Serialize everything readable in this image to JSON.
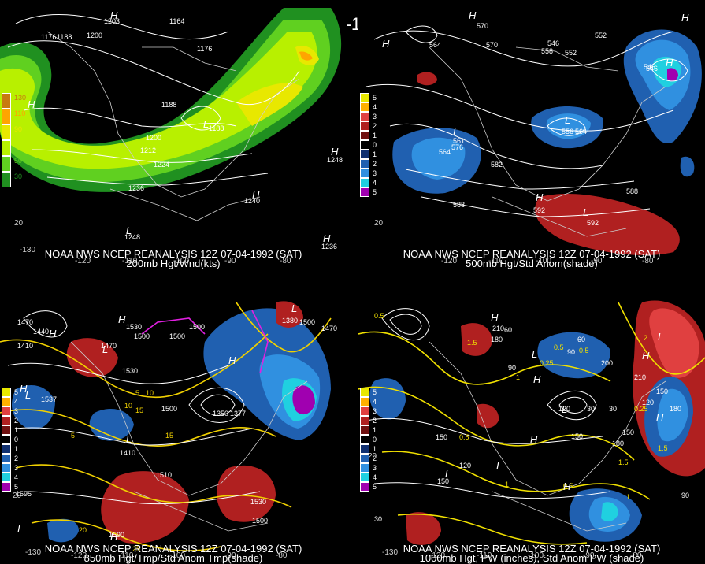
{
  "title": "12Z 07-04-1992 (SAT)",
  "panels": [
    {
      "caption1": "NOAA NWS NCEP REANALYSIS 12Z 07-04-1992 (SAT)",
      "caption2": "200mb Hgt/Wnd(kts)",
      "legend": [
        {
          "label": "130",
          "color": "#c87a10"
        },
        {
          "label": "110",
          "color": "#ffa500"
        },
        {
          "label": "90",
          "color": "#e8e800"
        },
        {
          "label": "70",
          "color": "#b8f000"
        },
        {
          "label": "50",
          "color": "#60d020"
        },
        {
          "label": "30",
          "color": "#209020"
        }
      ],
      "contour_labels": [
        "1176",
        "1188",
        "1200",
        "1203",
        "1164",
        "1176",
        "1188",
        "1188",
        "1200",
        "1212",
        "1224",
        "1236",
        "1240",
        "1248",
        "1248",
        "1236"
      ],
      "pressure_marks": [
        "H",
        "H",
        "L",
        "H",
        "H",
        "L",
        "H"
      ],
      "lon_labels": [
        "-130",
        "-120",
        "-110",
        "-100",
        "-90",
        "-80"
      ],
      "lat_labels": [
        "20"
      ]
    },
    {
      "caption1": "NOAA NWS NCEP REANALYSIS 12Z 07-04-1992 (SAT)",
      "caption2": "500mb Hgt/Std Anom(shade)",
      "legend": [
        {
          "label": "5",
          "color": "#e8e800"
        },
        {
          "label": "4",
          "color": "#ffb000"
        },
        {
          "label": "3",
          "color": "#e04040"
        },
        {
          "label": "2",
          "color": "#b02020"
        },
        {
          "label": "1",
          "color": "#701010"
        },
        {
          "label": "0",
          "color": "#000000"
        },
        {
          "label": "1",
          "color": "#103070"
        },
        {
          "label": "2",
          "color": "#2060b0"
        },
        {
          "label": "3",
          "color": "#3090e0"
        },
        {
          "label": "4",
          "color": "#20d0e0"
        },
        {
          "label": "5",
          "color": "#a000b0"
        }
      ],
      "contour_labels": [
        "570",
        "564",
        "552",
        "546",
        "558",
        "552",
        "546",
        "564",
        "576",
        "582",
        "588",
        "588",
        "592",
        "592",
        "570",
        "556",
        "564",
        "561",
        "546"
      ],
      "pressure_marks": [
        "H",
        "H",
        "L",
        "L",
        "H",
        "L",
        "H",
        "H"
      ],
      "lon_labels": [
        "-120",
        "-110",
        "-100",
        "-90",
        "-80"
      ],
      "lat_labels": [
        "20"
      ]
    },
    {
      "caption1": "NOAA NWS NCEP REANALYSIS 12Z 07-04-1992 (SAT)",
      "caption2": "850mb Hgt/Tmp/Std Anom Tmp(shade)",
      "legend": [
        {
          "label": "5",
          "color": "#e8e800"
        },
        {
          "label": "4",
          "color": "#ffb000"
        },
        {
          "label": "3",
          "color": "#e04040"
        },
        {
          "label": "2",
          "color": "#b02020"
        },
        {
          "label": "1",
          "color": "#701010"
        },
        {
          "label": "0",
          "color": "#000000"
        },
        {
          "label": "1",
          "color": "#103070"
        },
        {
          "label": "2",
          "color": "#2060b0"
        },
        {
          "label": "3",
          "color": "#3090e0"
        },
        {
          "label": "4",
          "color": "#20d0e0"
        },
        {
          "label": "5",
          "color": "#a000b0"
        }
      ],
      "contour_labels": [
        "1440",
        "1410",
        "1470",
        "1500",
        "1530",
        "1500",
        "1510",
        "1530",
        "1500",
        "1590",
        "1595",
        "1500",
        "1500",
        "1470",
        "1380",
        "1410",
        "1350",
        "1377",
        "1500",
        "1537",
        "1530",
        "1470"
      ],
      "temp_labels": [
        "5",
        "10",
        "10",
        "15",
        "5",
        "20",
        "25",
        "15"
      ],
      "pressure_marks": [
        "L",
        "H",
        "L",
        "L",
        "H",
        "L",
        "H",
        "H",
        "L",
        "H"
      ],
      "lon_labels": [
        "-130",
        "-120",
        "-110",
        "-100",
        "-90",
        "-80"
      ],
      "lat_labels": [
        "20"
      ]
    },
    {
      "caption1": "NOAA NWS NCEP REANALYSIS 12Z 07-04-1992 (SAT)",
      "caption2": "1000mb Hgt, PW (inches), Std Anom PW (shade)",
      "legend": [
        {
          "label": "5",
          "color": "#e8e800"
        },
        {
          "label": "4",
          "color": "#ffb000"
        },
        {
          "label": "3",
          "color": "#e04040"
        },
        {
          "label": "2",
          "color": "#b02020"
        },
        {
          "label": "1",
          "color": "#701010"
        },
        {
          "label": "0",
          "color": "#000000"
        },
        {
          "label": "1",
          "color": "#103070"
        },
        {
          "label": "2",
          "color": "#2060b0"
        },
        {
          "label": "3",
          "color": "#3090e0"
        },
        {
          "label": "4",
          "color": "#20d0e0"
        },
        {
          "label": "5",
          "color": "#a000b0"
        }
      ],
      "contour_labels": [
        "210",
        "180",
        "150",
        "120",
        "90",
        "60",
        "30",
        "120",
        "150",
        "180",
        "120",
        "150",
        "90",
        "30",
        "60",
        "90",
        "30",
        "150",
        "180",
        "210",
        "200",
        "150"
      ],
      "pw_labels": [
        "0.5",
        "0.25",
        "0.5",
        "1",
        "0.5",
        "1.5",
        "0.25",
        "0.5",
        "1",
        "0.5",
        "1.5",
        "1",
        "1.5",
        "2"
      ],
      "pressure_marks": [
        "H",
        "H",
        "L",
        "L",
        "H",
        "L",
        "L",
        "H",
        "H",
        "L",
        "H"
      ],
      "lon_labels": [
        "-130",
        "-120",
        "-110",
        "-100",
        "-90",
        "-80"
      ],
      "lat_labels": [
        "20"
      ]
    }
  ]
}
